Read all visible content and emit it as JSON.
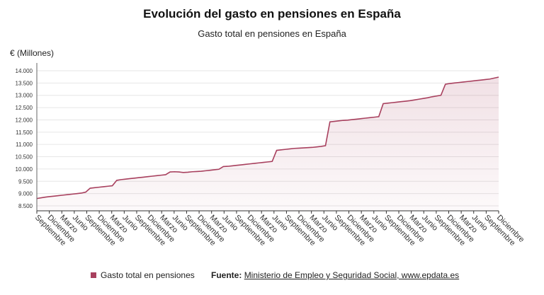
{
  "page": {
    "title": "Evolución del gasto en pensiones en España",
    "subtitle": "Gasto total en pensiones en España",
    "y_unit": "€ (Millones)",
    "legend_label": "Gasto total en pensiones",
    "source_label": "Fuente:",
    "source_text": "Ministerio de Empleo y Seguridad Social, www.epdata.es"
  },
  "colors": {
    "series": "#a8405e",
    "axis": "#666666",
    "grid": "#e6e6e6"
  },
  "chart_data": {
    "type": "area",
    "title": "Evolución del gasto en pensiones en España",
    "subtitle": "Gasto total en pensiones en España",
    "ylabel": "€ (Millones)",
    "ylim": [
      8300,
      14200
    ],
    "yticks": [
      8500,
      9000,
      9500,
      10000,
      10500,
      11000,
      11500,
      12000,
      12500,
      13000,
      13500,
      14000
    ],
    "ytick_labels": [
      "8.500",
      "9.000",
      "9.500",
      "10.000",
      "10.500",
      "11.000",
      "11.500",
      "12.000",
      "12.500",
      "13.000",
      "13.500",
      "14.000"
    ],
    "xtick_labels": [
      "Septiembre",
      "Diciembre",
      "Marzo",
      "Junio",
      "Septiembre",
      "Diciembre",
      "Marzo",
      "Junio",
      "Septiembre",
      "Diciembre",
      "Marzo",
      "Junio",
      "Septiembre",
      "Diciembre",
      "Marzo",
      "Junio",
      "Septiembre",
      "Diciembre",
      "Marzo",
      "Junio",
      "Septiembre",
      "Diciembre",
      "Marzo",
      "Junio",
      "Septiembre",
      "Diciembre",
      "Marzo",
      "Junio",
      "Septiembre",
      "Diciembre",
      "Marzo",
      "Junio",
      "Septiembre",
      "Diciembre",
      "Marzo",
      "Junio",
      "Septiembre",
      "Diciembre"
    ],
    "grid": true,
    "legend": "bottom-left",
    "series": [
      {
        "name": "Gasto total en pensiones",
        "values": [
          8800,
          8830,
          8860,
          8880,
          8900,
          8920,
          8940,
          8960,
          8980,
          9000,
          9020,
          9060,
          9220,
          9240,
          9260,
          9280,
          9300,
          9320,
          9540,
          9570,
          9590,
          9610,
          9630,
          9650,
          9670,
          9690,
          9710,
          9730,
          9750,
          9770,
          9880,
          9890,
          9880,
          9860,
          9870,
          9890,
          9900,
          9910,
          9930,
          9950,
          9970,
          9990,
          10100,
          10110,
          10130,
          10150,
          10170,
          10190,
          10210,
          10230,
          10250,
          10270,
          10290,
          10310,
          10760,
          10780,
          10800,
          10820,
          10840,
          10850,
          10860,
          10870,
          10880,
          10900,
          10920,
          10950,
          11920,
          11940,
          11960,
          11980,
          11990,
          12010,
          12030,
          12050,
          12070,
          12090,
          12110,
          12130,
          12660,
          12680,
          12700,
          12720,
          12740,
          12760,
          12780,
          12810,
          12840,
          12870,
          12900,
          12940,
          12970,
          13000,
          13450,
          13480,
          13500,
          13520,
          13540,
          13560,
          13580,
          13600,
          13620,
          13640,
          13660,
          13700,
          13740
        ]
      }
    ]
  }
}
